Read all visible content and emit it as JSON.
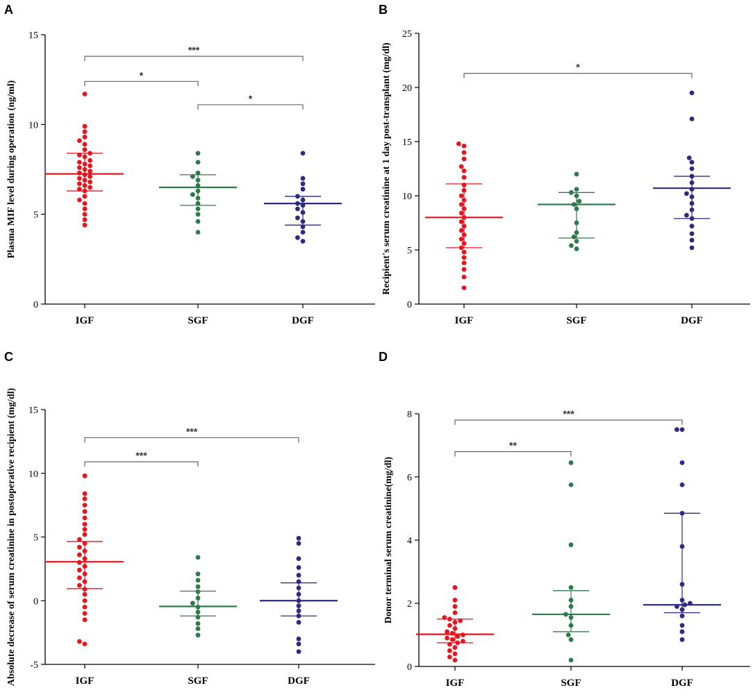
{
  "figure": {
    "colors": {
      "IGF": "#e8141e",
      "SGF": "#2e7a4c",
      "DGF": "#2e2a82",
      "axis": "#000000",
      "bracket": "#555555"
    }
  },
  "chart_data": [
    {
      "panel": "A",
      "type": "scatter",
      "ylabel": "Plasma MIF level during operation (ng/ml)",
      "ylim": [
        0,
        15
      ],
      "yticks": [
        0,
        5,
        10,
        15
      ],
      "categories": [
        "IGF",
        "SGF",
        "DGF"
      ],
      "series": [
        {
          "name": "IGF",
          "center": 7.25,
          "lower": 6.3,
          "upper": 8.4,
          "values": [
            11.7,
            9.9,
            9.6,
            9.3,
            9.1,
            8.9,
            8.6,
            8.4,
            8.3,
            8.2,
            8.0,
            7.9,
            7.8,
            7.7,
            7.6,
            7.5,
            7.4,
            7.3,
            7.2,
            7.1,
            7.0,
            6.9,
            6.8,
            6.7,
            6.6,
            6.5,
            6.4,
            6.3,
            6.0,
            5.8,
            5.6,
            5.3,
            5.0,
            4.7,
            4.4
          ]
        },
        {
          "name": "SGF",
          "center": 6.5,
          "lower": 5.5,
          "upper": 7.2,
          "values": [
            8.4,
            7.9,
            7.3,
            7.1,
            6.9,
            6.6,
            6.3,
            6.1,
            5.9,
            5.6,
            5.3,
            5.0,
            4.6,
            4.0
          ]
        },
        {
          "name": "DGF",
          "center": 5.6,
          "lower": 4.4,
          "upper": 6.0,
          "values": [
            8.4,
            7.0,
            6.7,
            6.4,
            6.0,
            5.8,
            5.6,
            5.5,
            5.3,
            5.1,
            4.8,
            4.6,
            4.3,
            4.0,
            3.7,
            3.5
          ]
        }
      ],
      "significance": [
        {
          "from": "IGF",
          "to": "DGF",
          "y": 13.8,
          "label": "***"
        },
        {
          "from": "IGF",
          "to": "SGF",
          "y": 12.4,
          "label": "*"
        },
        {
          "from": "SGF",
          "to": "DGF",
          "y": 11.1,
          "label": "*"
        }
      ]
    },
    {
      "panel": "B",
      "type": "scatter",
      "ylabel": "Recipient's serum creatinine at 1 day post-transplant (mg/dl)",
      "ylim": [
        0,
        25
      ],
      "yticks": [
        0,
        5,
        10,
        15,
        20,
        25
      ],
      "categories": [
        "IGF",
        "SGF",
        "DGF"
      ],
      "series": [
        {
          "name": "IGF",
          "center": 8.0,
          "lower": 5.2,
          "upper": 11.1,
          "values": [
            14.8,
            14.6,
            14.0,
            13.4,
            12.7,
            12.3,
            11.7,
            11.0,
            10.5,
            10.0,
            9.6,
            9.2,
            8.8,
            8.4,
            8.0,
            7.6,
            7.2,
            6.8,
            6.4,
            6.0,
            5.6,
            5.2,
            4.8,
            4.3,
            3.8,
            3.2,
            2.5,
            1.5
          ]
        },
        {
          "name": "SGF",
          "center": 9.2,
          "lower": 6.1,
          "upper": 10.3,
          "values": [
            12.0,
            10.6,
            10.3,
            10.0,
            9.5,
            9.2,
            8.8,
            7.5,
            6.6,
            6.2,
            5.8,
            5.4,
            5.1
          ]
        },
        {
          "name": "DGF",
          "center": 10.7,
          "lower": 7.9,
          "upper": 11.8,
          "values": [
            19.5,
            17.1,
            13.5,
            13.1,
            12.5,
            11.8,
            11.2,
            10.6,
            10.2,
            9.9,
            9.3,
            8.7,
            8.2,
            7.9,
            7.2,
            6.5,
            5.9,
            5.2
          ]
        }
      ],
      "significance": [
        {
          "from": "IGF",
          "to": "DGF",
          "y": 21.3,
          "label": "*"
        }
      ]
    },
    {
      "panel": "C",
      "type": "scatter",
      "ylabel": "Absolute decrease of serum creatinine in postoperative recipient (mg/dl)",
      "ylim": [
        -5,
        15
      ],
      "yticks": [
        -5,
        0,
        5,
        10,
        15
      ],
      "categories": [
        "IGF",
        "SGF",
        "DGF"
      ],
      "series": [
        {
          "name": "IGF",
          "center": 3.05,
          "lower": 0.95,
          "upper": 4.65,
          "values": [
            9.8,
            8.4,
            8.0,
            7.5,
            7.0,
            6.5,
            6.0,
            5.6,
            5.2,
            4.8,
            4.5,
            4.2,
            3.9,
            3.6,
            3.3,
            3.0,
            2.7,
            2.4,
            2.1,
            1.8,
            1.5,
            1.2,
            0.9,
            0.5,
            0.0,
            -0.5,
            -1.0,
            -1.5,
            -3.2,
            -3.4
          ]
        },
        {
          "name": "SGF",
          "center": -0.45,
          "lower": -1.2,
          "upper": 0.75,
          "values": [
            3.4,
            2.1,
            1.6,
            1.1,
            0.7,
            0.2,
            -0.2,
            -0.5,
            -0.9,
            -1.3,
            -1.8,
            -2.2,
            -2.7
          ]
        },
        {
          "name": "DGF",
          "center": 0.0,
          "lower": -1.2,
          "upper": 1.4,
          "values": [
            4.9,
            4.5,
            3.3,
            2.6,
            2.0,
            1.5,
            1.0,
            0.5,
            0.0,
            -0.4,
            -0.8,
            -1.2,
            -1.7,
            -3.0,
            -3.4,
            -4.0
          ]
        }
      ],
      "significance": [
        {
          "from": "IGF",
          "to": "DGF",
          "y": 12.8,
          "label": "***"
        },
        {
          "from": "IGF",
          "to": "SGF",
          "y": 10.9,
          "label": "***"
        }
      ]
    },
    {
      "panel": "D",
      "type": "scatter",
      "ylabel": "Donor terminal serum creatinine(mg/dl)",
      "ylim": [
        0,
        8
      ],
      "yticks": [
        0,
        2,
        4,
        6,
        8
      ],
      "categories": [
        "IGF",
        "SGF",
        "DGF"
      ],
      "series": [
        {
          "name": "IGF",
          "center": 1.02,
          "lower": 0.75,
          "upper": 1.5,
          "values": [
            2.5,
            2.1,
            1.9,
            1.7,
            1.55,
            1.5,
            1.45,
            1.4,
            1.3,
            1.2,
            1.1,
            1.05,
            1.0,
            0.95,
            0.9,
            0.85,
            0.8,
            0.75,
            0.7,
            0.6,
            0.5,
            0.4,
            0.3,
            0.2
          ]
        },
        {
          "name": "SGF",
          "center": 1.65,
          "lower": 1.1,
          "upper": 2.4,
          "values": [
            6.45,
            5.75,
            3.85,
            2.5,
            2.1,
            1.9,
            1.65,
            1.55,
            1.3,
            1.0,
            0.85,
            0.2
          ]
        },
        {
          "name": "DGF",
          "center": 1.95,
          "lower": 1.7,
          "upper": 4.85,
          "values": [
            7.5,
            7.5,
            6.45,
            5.75,
            4.85,
            3.8,
            2.6,
            2.1,
            2.0,
            1.95,
            1.9,
            1.8,
            1.6,
            1.3,
            1.1,
            0.85
          ]
        }
      ],
      "significance": [
        {
          "from": "IGF",
          "to": "DGF",
          "y": 7.8,
          "label": "***"
        },
        {
          "from": "IGF",
          "to": "SGF",
          "y": 6.8,
          "label": "**"
        }
      ]
    }
  ]
}
